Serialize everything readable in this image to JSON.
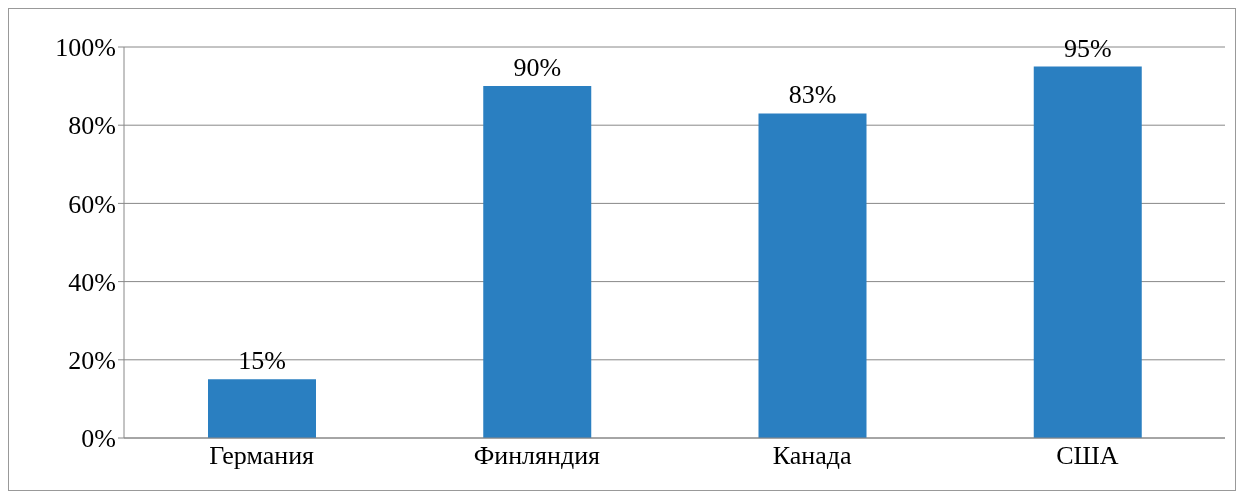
{
  "chart_data": {
    "type": "bar",
    "categories": [
      "Германия",
      "Финляндия",
      "Канада",
      "США"
    ],
    "values": [
      15,
      90,
      83,
      95
    ],
    "color": "#2a7fc1",
    "value_labels": [
      "15%",
      "90%",
      "83%",
      "95%"
    ],
    "ylim": [
      0,
      100
    ],
    "yticks": [
      {
        "value": 0,
        "label": "0%"
      },
      {
        "value": 20,
        "label": "20%"
      },
      {
        "value": 40,
        "label": "40%"
      },
      {
        "value": 60,
        "label": "60%"
      },
      {
        "value": 80,
        "label": "80%"
      },
      {
        "value": 100,
        "label": "100%"
      }
    ],
    "grid": "y"
  }
}
